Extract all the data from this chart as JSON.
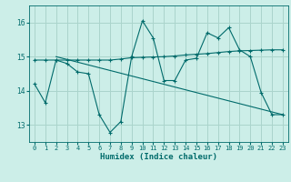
{
  "xlabel": "Humidex (Indice chaleur)",
  "xlim": [
    -0.5,
    23.5
  ],
  "ylim": [
    12.5,
    16.5
  ],
  "yticks": [
    13,
    14,
    15,
    16
  ],
  "xticks": [
    0,
    1,
    2,
    3,
    4,
    5,
    6,
    7,
    8,
    9,
    10,
    11,
    12,
    13,
    14,
    15,
    16,
    17,
    18,
    19,
    20,
    21,
    22,
    23
  ],
  "bg_color": "#cceee8",
  "grid_color": "#aad4cc",
  "line_color": "#006b6b",
  "series1_x": [
    0,
    1,
    2,
    3,
    4,
    5,
    6,
    7,
    8,
    9,
    10,
    11,
    12,
    13,
    14,
    15,
    16,
    17,
    18,
    19,
    20,
    21,
    22,
    23
  ],
  "series1_y": [
    14.2,
    13.65,
    14.9,
    14.8,
    14.55,
    14.5,
    13.3,
    12.78,
    13.1,
    15.0,
    16.05,
    15.55,
    14.3,
    14.3,
    14.9,
    14.95,
    15.7,
    15.55,
    15.85,
    15.2,
    15.0,
    13.95,
    13.3,
    13.3
  ],
  "series2_x": [
    0,
    1,
    2,
    3,
    4,
    5,
    6,
    7,
    8,
    9,
    10,
    11,
    12,
    13,
    14,
    15,
    16,
    17,
    18,
    19,
    20,
    21,
    22,
    23
  ],
  "series2_y": [
    14.9,
    14.9,
    14.9,
    14.9,
    14.9,
    14.9,
    14.9,
    14.9,
    14.93,
    14.97,
    14.98,
    14.99,
    15.0,
    15.02,
    15.05,
    15.07,
    15.09,
    15.12,
    15.15,
    15.17,
    15.18,
    15.19,
    15.2,
    15.2
  ],
  "series3_x": [
    2,
    23
  ],
  "series3_y": [
    15.0,
    13.3
  ]
}
